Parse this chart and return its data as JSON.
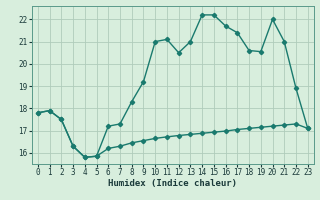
{
  "title": "",
  "xlabel": "Humidex (Indice chaleur)",
  "ylabel": "",
  "bg_color": "#d8eedd",
  "plot_bg_color": "#d8eedd",
  "line_color": "#1a7a6e",
  "grid_color": "#b0ccbb",
  "spine_color": "#5a9a8a",
  "xlabel_color": "#1a3a3a",
  "tick_color": "#1a3a3a",
  "xlim": [
    -0.5,
    23.5
  ],
  "ylim": [
    15.5,
    22.6
  ],
  "xticks": [
    0,
    1,
    2,
    3,
    4,
    5,
    6,
    7,
    8,
    9,
    10,
    11,
    12,
    13,
    14,
    15,
    16,
    17,
    18,
    19,
    20,
    21,
    22,
    23
  ],
  "yticks": [
    16,
    17,
    18,
    19,
    20,
    21,
    22
  ],
  "line1_x": [
    0,
    1,
    2,
    3,
    4,
    5,
    6,
    7,
    8,
    9,
    10,
    11,
    12,
    13,
    14,
    15,
    16,
    17,
    18,
    19,
    20,
    21,
    22,
    23
  ],
  "line1_y": [
    17.8,
    17.9,
    17.5,
    16.3,
    15.8,
    15.85,
    17.2,
    17.3,
    18.3,
    19.2,
    21.0,
    21.1,
    20.5,
    21.0,
    22.2,
    22.2,
    21.7,
    21.4,
    20.6,
    20.55,
    22.0,
    21.0,
    18.9,
    17.1
  ],
  "line2_x": [
    0,
    1,
    2,
    3,
    4,
    5,
    6,
    7,
    8,
    9,
    10,
    11,
    12,
    13,
    14,
    15,
    16,
    17,
    18,
    19,
    20,
    21,
    22,
    23
  ],
  "line2_y": [
    17.8,
    17.9,
    17.5,
    16.3,
    15.8,
    15.85,
    16.2,
    16.3,
    16.45,
    16.55,
    16.65,
    16.72,
    16.78,
    16.83,
    16.88,
    16.93,
    16.98,
    17.05,
    17.1,
    17.15,
    17.2,
    17.25,
    17.3,
    17.1
  ],
  "marker": "D",
  "markersize": 2.2,
  "linewidth": 1.0,
  "xlabel_fontsize": 6.5,
  "tick_fontsize": 5.5
}
